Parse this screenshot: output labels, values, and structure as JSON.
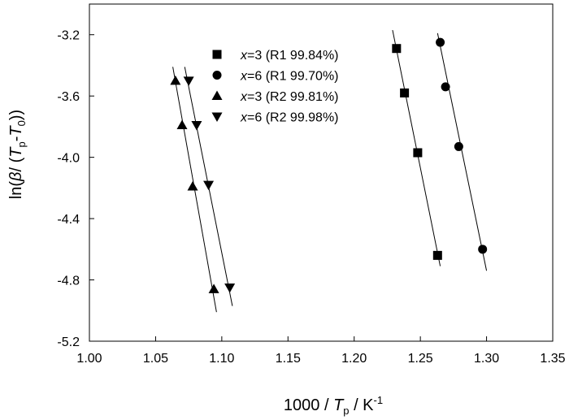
{
  "chart_data": {
    "type": "scatter",
    "xlabel": {
      "pre": "1000 / ",
      "var": "T",
      "sub": "p",
      "mid": " / K",
      "sup": "-1"
    },
    "ylabel": {
      "pre": "ln(",
      "beta": "β",
      "slash": "/ (",
      "var1": "T",
      "sub1": "p",
      "dash": "-",
      "var2": "T",
      "sub2": "0",
      "post": "))"
    },
    "xlim": [
      1.0,
      1.35
    ],
    "ylim": [
      -5.2,
      -3.0
    ],
    "xticks": [
      1.0,
      1.05,
      1.1,
      1.15,
      1.2,
      1.25,
      1.3,
      1.35
    ],
    "xtick_labels": [
      "1.00",
      "1.05",
      "1.10",
      "1.15",
      "1.20",
      "1.25",
      "1.30",
      "1.35"
    ],
    "yticks": [
      -5.2,
      -4.8,
      -4.4,
      -4.0,
      -3.6,
      -3.2
    ],
    "ytick_labels": [
      "-5.2",
      "-4.8",
      "-4.4",
      "-4.0",
      "-3.6",
      "-3.2"
    ],
    "grid": false,
    "legend": "top-center",
    "series": [
      {
        "name": "x=3 (R1 99.84%)",
        "legend_var": "x",
        "legend_rest": "=3 (R1 99.84%)",
        "marker": "square",
        "x": [
          1.232,
          1.238,
          1.248,
          1.263
        ],
        "y": [
          -3.29,
          -3.58,
          -3.97,
          -4.64
        ],
        "fit": {
          "x": [
            1.229,
            1.265
          ],
          "y": [
            -3.17,
            -4.71
          ]
        }
      },
      {
        "name": "x=6 (R1 99.70%)",
        "legend_var": "x",
        "legend_rest": "=6 (R1 99.70%)",
        "marker": "circle",
        "x": [
          1.265,
          1.269,
          1.279,
          1.297
        ],
        "y": [
          -3.25,
          -3.54,
          -3.93,
          -4.6
        ],
        "fit": {
          "x": [
            1.263,
            1.3
          ],
          "y": [
            -3.19,
            -4.74
          ]
        }
      },
      {
        "name": "x=3 (R2 99.81%)",
        "legend_var": "x",
        "legend_rest": "=3 (R2 99.81%)",
        "marker": "triangle-up",
        "x": [
          1.065,
          1.07,
          1.078,
          1.094
        ],
        "y": [
          -3.5,
          -3.79,
          -4.19,
          -4.86
        ],
        "fit": {
          "x": [
            1.063,
            1.096
          ],
          "y": [
            -3.41,
            -5.01
          ]
        }
      },
      {
        "name": "x=6 (R2 99.98%)",
        "legend_var": "x",
        "legend_rest": "=6 (R2 99.98%)",
        "marker": "triangle-down",
        "x": [
          1.075,
          1.081,
          1.09,
          1.106
        ],
        "y": [
          -3.5,
          -3.79,
          -4.18,
          -4.85
        ],
        "fit": {
          "x": [
            1.072,
            1.108
          ],
          "y": [
            -3.41,
            -4.97
          ]
        }
      }
    ]
  }
}
